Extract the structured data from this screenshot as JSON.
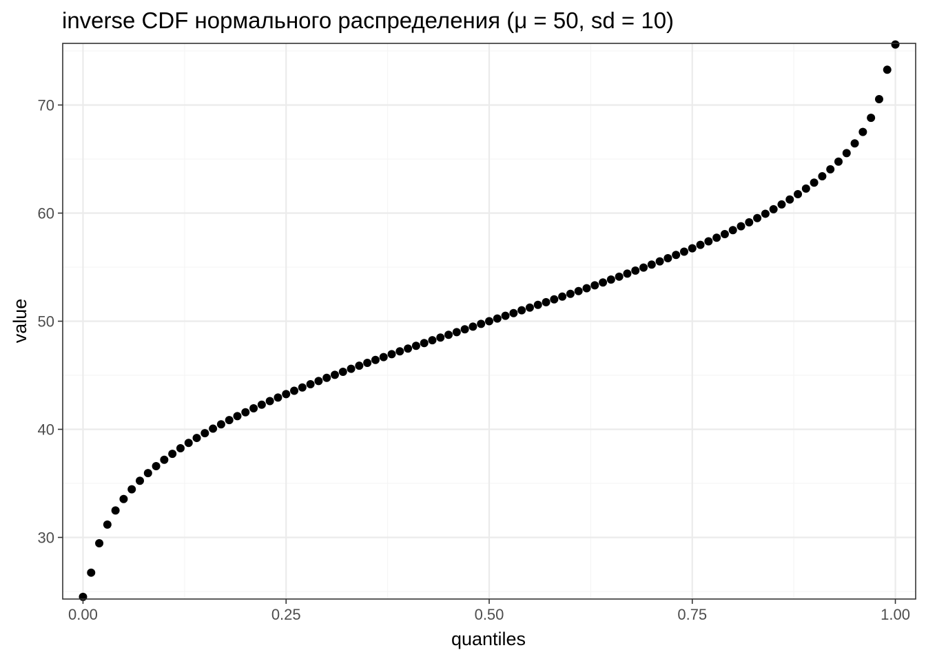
{
  "chart_data": {
    "type": "scatter",
    "title": "inverse CDF нормального распределения (μ = 50, sd = 10)",
    "xlabel": "quantiles",
    "ylabel": "value",
    "xlim": [
      -0.025,
      1.025
    ],
    "ylim": [
      24.3,
      75.7
    ],
    "x_ticks": [
      0.0,
      0.25,
      0.5,
      0.75,
      1.0
    ],
    "x_tick_labels": [
      "0.00",
      "0.25",
      "0.50",
      "0.75",
      "1.00"
    ],
    "y_ticks": [
      30,
      40,
      50,
      60,
      70
    ],
    "y_tick_labels": [
      "30",
      "40",
      "50",
      "60",
      "70"
    ],
    "grid": true,
    "legend": "none",
    "point_color": "#000000",
    "panel_border_color": "#333333",
    "grid_major_color": "#ebebeb",
    "grid_minor_color": "#f5f5f5",
    "series": [
      {
        "x": [
          0.0,
          0.01,
          0.02,
          0.03,
          0.04,
          0.05,
          0.06,
          0.07,
          0.08,
          0.09,
          0.1,
          0.11,
          0.12,
          0.13,
          0.14,
          0.15,
          0.16,
          0.17,
          0.18,
          0.19,
          0.2,
          0.21,
          0.22,
          0.23,
          0.24,
          0.25,
          0.26,
          0.27,
          0.28,
          0.29,
          0.3,
          0.31,
          0.32,
          0.33,
          0.34,
          0.35,
          0.36,
          0.37,
          0.38,
          0.39,
          0.4,
          0.41,
          0.42,
          0.43,
          0.44,
          0.45,
          0.46,
          0.47,
          0.48,
          0.49,
          0.5,
          0.51,
          0.52,
          0.53,
          0.54,
          0.55,
          0.56,
          0.57,
          0.58,
          0.59,
          0.6,
          0.61,
          0.62,
          0.63,
          0.64,
          0.65,
          0.66,
          0.67,
          0.68,
          0.69,
          0.7,
          0.71,
          0.72,
          0.73,
          0.74,
          0.75,
          0.76,
          0.77,
          0.78,
          0.79,
          0.8,
          0.81,
          0.82,
          0.83,
          0.84,
          0.85,
          0.86,
          0.87,
          0.88,
          0.89,
          0.9,
          0.91,
          0.92,
          0.93,
          0.94,
          0.95,
          0.96,
          0.97,
          0.98,
          0.99,
          1.0
        ],
        "y": [
          24.5,
          26.74,
          29.46,
          31.19,
          32.49,
          33.55,
          34.45,
          35.24,
          35.95,
          36.59,
          37.18,
          37.73,
          38.25,
          38.74,
          39.2,
          39.64,
          40.06,
          40.46,
          40.85,
          41.22,
          41.58,
          41.94,
          42.28,
          42.61,
          42.94,
          43.26,
          43.57,
          43.87,
          44.17,
          44.47,
          44.76,
          45.04,
          45.32,
          45.6,
          45.88,
          46.15,
          46.42,
          46.68,
          46.95,
          47.21,
          47.47,
          47.72,
          47.98,
          48.24,
          48.49,
          48.74,
          48.99,
          49.25,
          49.5,
          49.75,
          50.0,
          50.25,
          50.5,
          50.75,
          51.01,
          51.26,
          51.51,
          51.76,
          52.02,
          52.28,
          52.53,
          52.79,
          53.05,
          53.32,
          53.58,
          53.85,
          54.12,
          54.4,
          54.68,
          54.96,
          55.24,
          55.53,
          55.83,
          56.13,
          56.43,
          56.74,
          57.06,
          57.39,
          57.72,
          58.06,
          58.42,
          58.78,
          59.15,
          59.54,
          59.94,
          60.36,
          60.8,
          61.26,
          61.75,
          62.27,
          62.82,
          63.41,
          64.05,
          64.76,
          65.55,
          66.45,
          67.51,
          68.81,
          70.54,
          73.26,
          75.6
        ]
      }
    ]
  }
}
